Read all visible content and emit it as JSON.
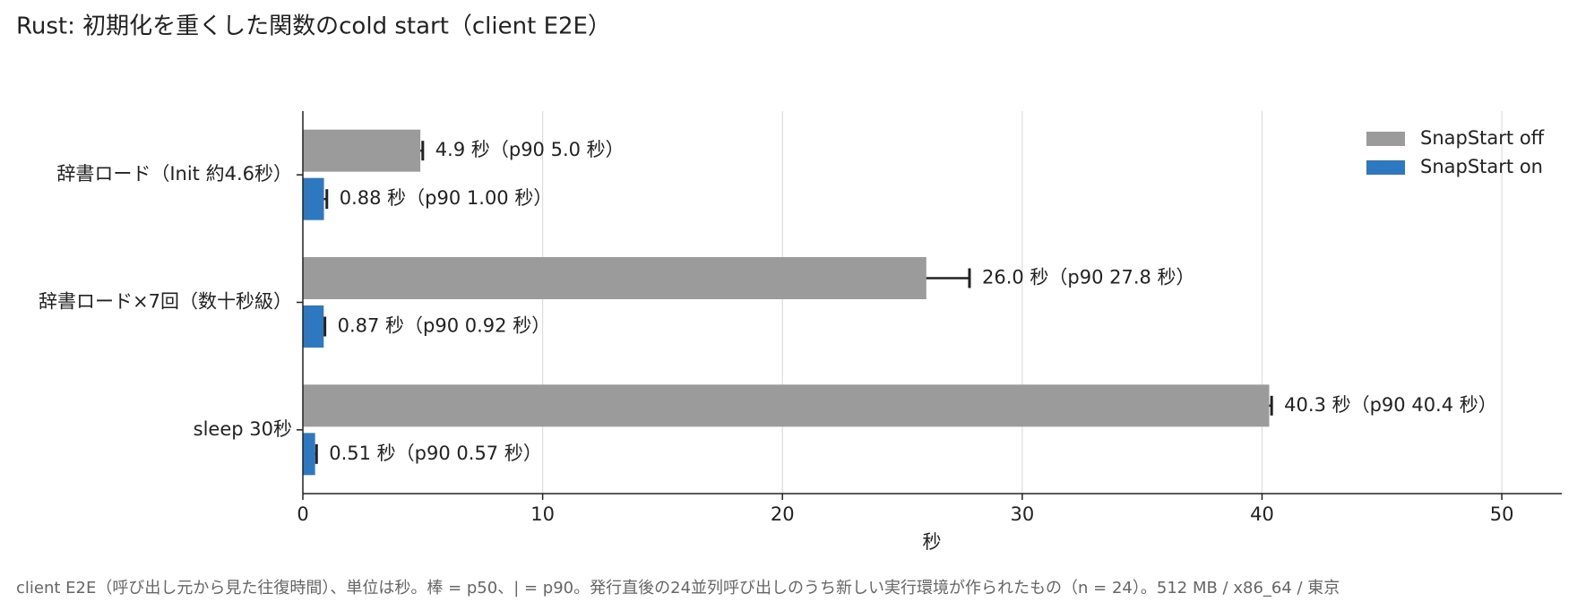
{
  "chart_data": {
    "type": "bar",
    "orientation": "horizontal",
    "title": "Rust: 初期化を重くした関数のcold start（client E2E）",
    "xlabel": "秒",
    "note": "client E2E（呼び出し元から見た往復時間）、単位は秒。棒 = p50、| = p90。発行直後の24並列呼び出しのうち新しい実行環境が作られたもの（n = 24）。512 MB / x86_64 / 東京",
    "categories": [
      "辞書ロード（Init 約4.6秒）",
      "辞書ロード×7回（数十秒級）",
      "sleep 30秒"
    ],
    "series": [
      {
        "name": "SnapStart off",
        "color": "#9b9b9b",
        "values": [
          4.9,
          26.0,
          40.3
        ],
        "p90": [
          5.0,
          27.8,
          40.4
        ],
        "value_labels": [
          "4.9 秒（p90 5.0 秒）",
          "26.0 秒（p90 27.8 秒）",
          "40.3 秒（p90 40.4 秒）"
        ]
      },
      {
        "name": "SnapStart on",
        "color": "#2e78c2",
        "values": [
          0.88,
          0.87,
          0.51
        ],
        "p90": [
          1.0,
          0.92,
          0.57
        ],
        "value_labels": [
          "0.88 秒（p90 1.00 秒）",
          "0.87 秒（p90 0.92 秒）",
          "0.51 秒（p90 0.57 秒）"
        ]
      }
    ],
    "xlim": [
      0,
      52.5
    ],
    "xticks": [
      0,
      10,
      20,
      30,
      40,
      50
    ],
    "grid": true,
    "legend": "upper right"
  }
}
